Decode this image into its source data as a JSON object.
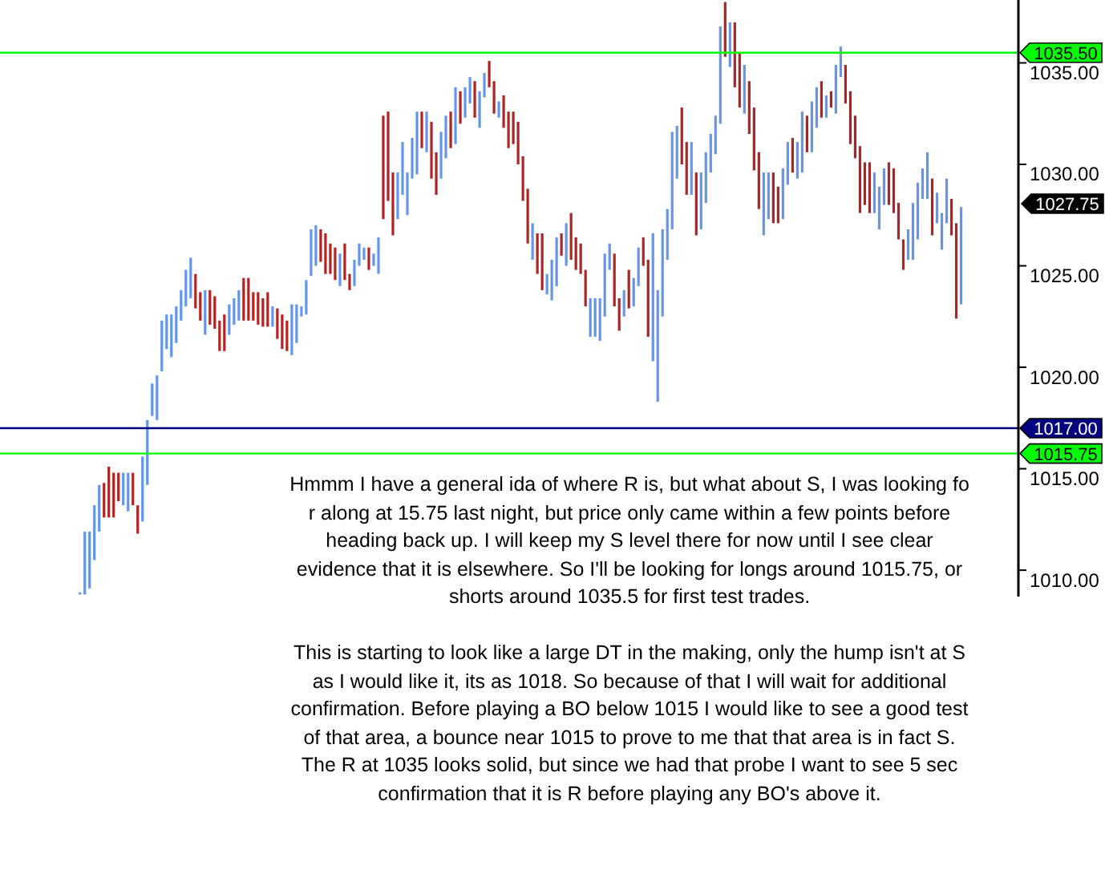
{
  "chart_data": {
    "type": "candlestick",
    "categories": [
      null,
      null,
      null,
      null,
      null,
      null,
      null,
      null,
      null,
      null,
      null,
      null,
      null,
      null,
      null,
      null,
      null,
      null,
      null,
      null,
      null,
      null,
      null,
      null,
      null,
      null,
      null,
      null,
      null,
      null,
      null,
      null,
      null,
      null,
      null,
      null,
      null,
      null,
      null,
      null,
      null,
      null,
      null,
      null,
      null,
      null,
      null,
      null,
      null,
      null,
      null,
      null,
      null,
      null,
      null,
      null,
      null,
      null,
      null,
      null,
      null,
      null,
      null,
      null,
      null,
      null,
      null,
      null,
      null,
      null,
      null,
      null,
      null,
      null,
      null,
      null,
      null,
      null,
      null,
      null,
      null,
      null,
      null,
      null,
      null,
      null,
      null,
      null,
      null,
      null,
      null,
      null,
      null,
      null,
      null,
      null,
      null,
      null,
      null,
      null,
      null,
      null,
      null,
      null,
      null,
      null,
      null,
      null,
      null,
      null,
      null,
      null,
      null,
      null,
      null,
      null,
      null,
      null,
      null,
      null,
      null,
      null,
      null,
      null,
      null,
      null,
      null,
      null,
      null,
      null,
      null,
      null,
      null,
      null,
      null,
      null,
      null,
      null,
      null,
      null,
      null,
      null,
      null,
      null,
      null,
      null,
      null,
      null,
      null,
      null,
      null,
      null,
      null,
      null,
      null,
      null,
      null,
      null,
      null,
      null,
      null,
      null,
      null,
      null,
      null,
      null,
      null,
      null,
      null,
      null,
      null,
      null,
      null,
      null,
      null,
      null,
      null,
      null,
      null,
      null,
      null,
      null,
      null,
      null
    ],
    "ohlc": [
      [
        1008.8,
        1008.9,
        1008.8,
        1008.9
      ],
      [
        1008.8,
        1011.9,
        1008.8,
        1011.9
      ],
      [
        1009.1,
        1011.9,
        1009.1,
        1011.9
      ],
      [
        1010.5,
        1013.2,
        1010.5,
        1013.2
      ],
      [
        1011.9,
        1014.2,
        1011.9,
        1014.2
      ],
      [
        1014.3,
        1014.3,
        1012.6,
        1012.6
      ],
      [
        1015.1,
        1015.1,
        1012.6,
        1012.6
      ],
      [
        1014.8,
        1014.8,
        1012.6,
        1012.6
      ],
      [
        1014.8,
        1014.8,
        1013.4,
        1013.4
      ],
      [
        1013.2,
        1014.8,
        1013.2,
        1014.8
      ],
      [
        1012.9,
        1014.8,
        1012.9,
        1014.8
      ],
      [
        1014.8,
        1014.8,
        1013.2,
        1013.2
      ],
      [
        1013.2,
        1013.2,
        1011.8,
        1011.8
      ],
      [
        1012.4,
        1015.6,
        1012.4,
        1015.6
      ],
      [
        1014.2,
        1017.4,
        1014.2,
        1017.4
      ],
      [
        1017.6,
        1019.2,
        1017.6,
        1019.2
      ],
      [
        1017.4,
        1019.6,
        1017.4,
        1019.6
      ],
      [
        1019.8,
        1022.3,
        1019.8,
        1022.3
      ],
      [
        1020.9,
        1022.6,
        1020.9,
        1022.6
      ],
      [
        1020.5,
        1022.6,
        1020.5,
        1022.6
      ],
      [
        1021.2,
        1023.0,
        1021.2,
        1023.0
      ],
      [
        1022.3,
        1023.8,
        1022.3,
        1023.8
      ],
      [
        1023.0,
        1024.8,
        1023.0,
        1024.8
      ],
      [
        1023.4,
        1025.4,
        1023.4,
        1025.4
      ],
      [
        1024.6,
        1024.6,
        1022.9,
        1022.9
      ],
      [
        1023.7,
        1023.7,
        1022.3,
        1022.3
      ],
      [
        1021.6,
        1023.8,
        1021.6,
        1023.8
      ],
      [
        1023.8,
        1023.8,
        1022.1,
        1022.1
      ],
      [
        1023.5,
        1023.5,
        1021.9,
        1021.9
      ],
      [
        1022.3,
        1022.3,
        1020.8,
        1020.8
      ],
      [
        1022.6,
        1022.6,
        1020.8,
        1020.8
      ],
      [
        1021.6,
        1023.1,
        1021.6,
        1023.1
      ],
      [
        1022.1,
        1023.4,
        1022.1,
        1023.4
      ],
      [
        1022.3,
        1023.8,
        1022.3,
        1023.8
      ],
      [
        1024.4,
        1024.4,
        1022.3,
        1022.3
      ],
      [
        1024.4,
        1024.4,
        1022.3,
        1022.3
      ],
      [
        1023.7,
        1023.7,
        1022.3,
        1022.3
      ],
      [
        1023.7,
        1023.7,
        1022.1,
        1022.1
      ],
      [
        1023.4,
        1023.4,
        1022.0,
        1022.0
      ],
      [
        1023.7,
        1023.7,
        1022.0,
        1022.0
      ],
      [
        1022.0,
        1023.0,
        1022.0,
        1023.0
      ],
      [
        1022.9,
        1022.9,
        1021.4,
        1021.4
      ],
      [
        1022.6,
        1022.6,
        1020.9,
        1020.9
      ],
      [
        1022.3,
        1022.3,
        1020.8,
        1020.8
      ],
      [
        1020.6,
        1023.1,
        1020.6,
        1023.1
      ],
      [
        1021.2,
        1023.1,
        1021.2,
        1023.1
      ],
      [
        1022.5,
        1023.0,
        1022.5,
        1023.0
      ],
      [
        1022.6,
        1024.3,
        1022.6,
        1024.3
      ],
      [
        1024.5,
        1026.8,
        1024.5,
        1026.8
      ],
      [
        1025.0,
        1027.0,
        1025.0,
        1027.0
      ],
      [
        1026.8,
        1026.8,
        1025.2,
        1025.2
      ],
      [
        1026.6,
        1026.6,
        1024.6,
        1024.6
      ],
      [
        1026.1,
        1026.1,
        1024.6,
        1024.6
      ],
      [
        1025.9,
        1025.9,
        1024.3,
        1024.3
      ],
      [
        1024.0,
        1025.6,
        1024.0,
        1025.6
      ],
      [
        1026.1,
        1026.1,
        1024.3,
        1024.3
      ],
      [
        1024.6,
        1024.6,
        1023.8,
        1023.8
      ],
      [
        1024.0,
        1025.3,
        1024.0,
        1025.3
      ],
      [
        1025.0,
        1026.1,
        1025.0,
        1026.1
      ],
      [
        1025.3,
        1025.9,
        1025.3,
        1025.9
      ],
      [
        1025.9,
        1025.9,
        1024.8,
        1024.8
      ],
      [
        1025.0,
        1025.6,
        1025.0,
        1025.6
      ],
      [
        1024.6,
        1026.4,
        1024.6,
        1026.4
      ],
      [
        1032.4,
        1032.4,
        1027.3,
        1027.3
      ],
      [
        1032.6,
        1032.6,
        1028.2,
        1028.2
      ],
      [
        1029.6,
        1029.6,
        1026.5,
        1026.5
      ],
      [
        1027.3,
        1029.6,
        1027.3,
        1029.6
      ],
      [
        1028.5,
        1031.1,
        1028.5,
        1031.1
      ],
      [
        1027.5,
        1029.6,
        1027.5,
        1029.6
      ],
      [
        1029.3,
        1031.3,
        1029.3,
        1031.3
      ],
      [
        1029.5,
        1032.6,
        1029.5,
        1032.6
      ],
      [
        1032.6,
        1032.6,
        1030.8,
        1030.8
      ],
      [
        1030.6,
        1032.6,
        1030.6,
        1032.6
      ],
      [
        1032.1,
        1032.1,
        1029.3,
        1029.3
      ],
      [
        1030.6,
        1030.6,
        1028.5,
        1028.5
      ],
      [
        1029.3,
        1031.6,
        1029.3,
        1031.6
      ],
      [
        1030.3,
        1032.4,
        1030.3,
        1032.4
      ],
      [
        1032.6,
        1032.6,
        1030.8,
        1030.8
      ],
      [
        1031.0,
        1033.8,
        1031.0,
        1033.8
      ],
      [
        1033.6,
        1033.6,
        1032.0,
        1032.0
      ],
      [
        1032.3,
        1033.8,
        1032.3,
        1033.8
      ],
      [
        1033.0,
        1034.3,
        1033.0,
        1034.3
      ],
      [
        1034.1,
        1034.1,
        1032.3,
        1032.3
      ],
      [
        1031.8,
        1033.6,
        1031.8,
        1033.6
      ],
      [
        1033.3,
        1034.5,
        1033.3,
        1034.5
      ],
      [
        1035.1,
        1035.1,
        1033.8,
        1033.8
      ],
      [
        1034.1,
        1034.1,
        1032.5,
        1032.5
      ],
      [
        1032.3,
        1033.1,
        1032.3,
        1033.1
      ],
      [
        1033.4,
        1033.4,
        1031.8,
        1031.8
      ],
      [
        1032.6,
        1032.6,
        1030.8,
        1030.8
      ],
      [
        1032.6,
        1032.6,
        1031.0,
        1031.0
      ],
      [
        1032.1,
        1032.1,
        1030.0,
        1030.0
      ],
      [
        1030.4,
        1030.4,
        1028.2,
        1028.2
      ],
      [
        1028.8,
        1028.8,
        1026.1,
        1026.1
      ],
      [
        1025.3,
        1027.1,
        1025.3,
        1027.1
      ],
      [
        1026.6,
        1026.6,
        1024.6,
        1024.6
      ],
      [
        1026.6,
        1026.6,
        1023.8,
        1023.8
      ],
      [
        1023.6,
        1024.6,
        1023.6,
        1024.6
      ],
      [
        1023.3,
        1025.3,
        1023.3,
        1025.3
      ],
      [
        1024.0,
        1026.4,
        1024.0,
        1026.4
      ],
      [
        1026.6,
        1026.6,
        1025.5,
        1025.5
      ],
      [
        1025.0,
        1027.1,
        1025.0,
        1027.1
      ],
      [
        1027.6,
        1027.6,
        1025.3,
        1025.3
      ],
      [
        1026.4,
        1026.4,
        1024.8,
        1024.8
      ],
      [
        1026.1,
        1026.1,
        1024.6,
        1024.6
      ],
      [
        1024.8,
        1024.8,
        1023.0,
        1023.0
      ],
      [
        1021.5,
        1023.4,
        1021.5,
        1023.4
      ],
      [
        1021.5,
        1023.4,
        1021.5,
        1023.4
      ],
      [
        1021.3,
        1023.4,
        1021.3,
        1023.4
      ],
      [
        1022.5,
        1025.6,
        1022.5,
        1025.6
      ],
      [
        1024.8,
        1026.1,
        1024.8,
        1026.1
      ],
      [
        1025.6,
        1025.6,
        1023.0,
        1023.0
      ],
      [
        1023.4,
        1023.4,
        1021.8,
        1021.8
      ],
      [
        1022.5,
        1023.8,
        1022.5,
        1023.8
      ],
      [
        1024.8,
        1024.8,
        1022.9,
        1022.9
      ],
      [
        1023.0,
        1024.4,
        1023.0,
        1024.4
      ],
      [
        1024.0,
        1025.9,
        1024.0,
        1025.9
      ],
      [
        1026.4,
        1026.4,
        1025.0,
        1025.0
      ],
      [
        1025.3,
        1025.3,
        1021.5,
        1021.5
      ],
      [
        1020.3,
        1026.6,
        1020.3,
        1026.6
      ],
      [
        1018.3,
        1023.8,
        1018.3,
        1023.8
      ],
      [
        1022.5,
        1026.8,
        1022.5,
        1026.8
      ],
      [
        1025.3,
        1027.8,
        1025.3,
        1027.8
      ],
      [
        1026.8,
        1031.6,
        1026.8,
        1031.6
      ],
      [
        1029.3,
        1031.9,
        1029.3,
        1031.9
      ],
      [
        1032.8,
        1032.8,
        1030.0,
        1030.0
      ],
      [
        1031.1,
        1031.1,
        1028.5,
        1028.5
      ],
      [
        1028.5,
        1031.1,
        1028.5,
        1031.1
      ],
      [
        1029.6,
        1029.6,
        1026.5,
        1026.5
      ],
      [
        1026.8,
        1029.6,
        1026.8,
        1029.6
      ],
      [
        1028.1,
        1030.6,
        1028.1,
        1030.6
      ],
      [
        1029.6,
        1031.5,
        1029.6,
        1031.5
      ],
      [
        1030.5,
        1032.4,
        1030.5,
        1032.4
      ],
      [
        1032.0,
        1036.8,
        1032.0,
        1036.8
      ],
      [
        1038.0,
        1038.0,
        1035.3,
        1035.3
      ],
      [
        1034.8,
        1037.0,
        1034.8,
        1037.0
      ],
      [
        1037.0,
        1037.0,
        1033.8,
        1033.8
      ],
      [
        1035.5,
        1035.5,
        1032.8,
        1032.8
      ],
      [
        1032.5,
        1034.9,
        1032.5,
        1034.9
      ],
      [
        1034.1,
        1034.1,
        1031.5,
        1031.5
      ],
      [
        1032.8,
        1032.8,
        1029.7,
        1029.7
      ],
      [
        1030.6,
        1030.6,
        1027.8,
        1027.8
      ],
      [
        1026.5,
        1029.6,
        1026.5,
        1029.6
      ],
      [
        1027.3,
        1029.6,
        1027.3,
        1029.6
      ],
      [
        1029.6,
        1029.6,
        1027.1,
        1027.1
      ],
      [
        1028.9,
        1028.9,
        1027.1,
        1027.1
      ],
      [
        1027.3,
        1029.8,
        1027.3,
        1029.8
      ],
      [
        1029.0,
        1031.1,
        1029.0,
        1031.1
      ],
      [
        1031.3,
        1031.3,
        1029.6,
        1029.6
      ],
      [
        1029.3,
        1031.1,
        1029.3,
        1031.1
      ],
      [
        1029.6,
        1032.6,
        1029.6,
        1032.6
      ],
      [
        1032.4,
        1032.4,
        1030.6,
        1030.6
      ],
      [
        1030.6,
        1033.1,
        1030.6,
        1033.1
      ],
      [
        1031.8,
        1033.8,
        1031.8,
        1033.8
      ],
      [
        1034.1,
        1034.1,
        1032.3,
        1032.3
      ],
      [
        1032.3,
        1033.4,
        1032.3,
        1033.4
      ],
      [
        1033.6,
        1033.6,
        1032.8,
        1032.8
      ],
      [
        1032.5,
        1034.9,
        1032.5,
        1034.9
      ],
      [
        1034.3,
        1035.8,
        1034.3,
        1035.8
      ],
      [
        1034.9,
        1034.9,
        1033.0,
        1033.0
      ],
      [
        1033.6,
        1033.6,
        1031.0,
        1031.0
      ],
      [
        1032.4,
        1032.4,
        1030.3,
        1030.3
      ],
      [
        1030.9,
        1030.9,
        1027.6,
        1027.6
      ],
      [
        1030.1,
        1030.1,
        1028.0,
        1028.0
      ],
      [
        1030.1,
        1030.1,
        1027.6,
        1027.6
      ],
      [
        1027.6,
        1029.6,
        1027.6,
        1029.6
      ],
      [
        1026.8,
        1028.9,
        1026.8,
        1028.9
      ],
      [
        1028.0,
        1029.8,
        1028.0,
        1029.8
      ],
      [
        1030.1,
        1030.1,
        1028.0,
        1028.0
      ],
      [
        1029.8,
        1029.8,
        1027.6,
        1027.6
      ],
      [
        1028.1,
        1028.1,
        1026.3,
        1026.3
      ],
      [
        1026.3,
        1026.3,
        1024.8,
        1024.8
      ],
      [
        1025.3,
        1026.8,
        1025.3,
        1026.8
      ],
      [
        1025.3,
        1028.1,
        1025.3,
        1028.1
      ],
      [
        1026.3,
        1029.1,
        1026.3,
        1029.1
      ],
      [
        1028.3,
        1029.8,
        1028.3,
        1029.8
      ],
      [
        1028.3,
        1030.6,
        1028.3,
        1030.6
      ],
      [
        1029.3,
        1029.3,
        1026.5,
        1026.5
      ],
      [
        1027.1,
        1028.6,
        1027.1,
        1028.6
      ],
      [
        1025.8,
        1027.6,
        1025.8,
        1027.6
      ],
      [
        1027.1,
        1029.3,
        1027.1,
        1029.3
      ],
      [
        1028.3,
        1028.3,
        1026.5,
        1026.5
      ],
      [
        1027.1,
        1027.1,
        1022.4,
        1022.4
      ],
      [
        1023.1,
        1027.9,
        1023.1,
        1027.9
      ]
    ],
    "colors": [
      "#6495ed",
      "#6495ed",
      "#6495ed",
      "#6495ed",
      "#6495ed",
      "#b22222",
      "#b22222",
      "#b22222",
      "#b22222",
      "#6495ed",
      "#6495ed",
      "#b22222",
      "#b22222",
      "#6495ed",
      "#6495ed",
      "#6495ed",
      "#6495ed",
      "#6495ed",
      "#6495ed",
      "#6495ed",
      "#6495ed",
      "#6495ed",
      "#6495ed",
      "#6495ed",
      "#b22222",
      "#b22222",
      "#6495ed",
      "#b22222",
      "#b22222",
      "#b22222",
      "#b22222",
      "#6495ed",
      "#6495ed",
      "#6495ed",
      "#b22222",
      "#b22222",
      "#b22222",
      "#b22222",
      "#b22222",
      "#b22222",
      "#6495ed",
      "#b22222",
      "#b22222",
      "#b22222",
      "#6495ed",
      "#6495ed",
      "#6495ed",
      "#6495ed",
      "#6495ed",
      "#6495ed",
      "#b22222",
      "#b22222",
      "#b22222",
      "#b22222",
      "#6495ed",
      "#b22222",
      "#b22222",
      "#6495ed",
      "#6495ed",
      "#6495ed",
      "#b22222",
      "#6495ed",
      "#6495ed",
      "#b22222",
      "#b22222",
      "#b22222",
      "#6495ed",
      "#6495ed",
      "#6495ed",
      "#6495ed",
      "#6495ed",
      "#b22222",
      "#6495ed",
      "#b22222",
      "#b22222",
      "#6495ed",
      "#6495ed",
      "#b22222",
      "#6495ed",
      "#b22222",
      "#6495ed",
      "#6495ed",
      "#b22222",
      "#6495ed",
      "#6495ed",
      "#b22222",
      "#b22222",
      "#6495ed",
      "#b22222",
      "#b22222",
      "#b22222",
      "#b22222",
      "#b22222",
      "#b22222",
      "#6495ed",
      "#b22222",
      "#b22222",
      "#6495ed",
      "#6495ed",
      "#6495ed",
      "#b22222",
      "#6495ed",
      "#b22222",
      "#b22222",
      "#b22222",
      "#b22222",
      "#6495ed",
      "#6495ed",
      "#6495ed",
      "#6495ed",
      "#6495ed",
      "#b22222",
      "#b22222",
      "#6495ed",
      "#b22222",
      "#6495ed",
      "#6495ed",
      "#b22222",
      "#b22222",
      "#6495ed",
      "#6495ed",
      "#6495ed",
      "#6495ed",
      "#6495ed",
      "#6495ed",
      "#b22222",
      "#b22222",
      "#6495ed",
      "#b22222",
      "#6495ed",
      "#6495ed",
      "#6495ed",
      "#6495ed",
      "#6495ed",
      "#b22222",
      "#6495ed",
      "#b22222",
      "#b22222",
      "#6495ed",
      "#b22222",
      "#b22222",
      "#b22222",
      "#6495ed",
      "#6495ed",
      "#b22222",
      "#b22222",
      "#6495ed",
      "#6495ed",
      "#b22222",
      "#6495ed",
      "#6495ed",
      "#b22222",
      "#6495ed",
      "#6495ed",
      "#b22222",
      "#6495ed",
      "#b22222",
      "#6495ed",
      "#6495ed",
      "#b22222",
      "#b22222",
      "#b22222",
      "#b22222",
      "#b22222",
      "#b22222",
      "#6495ed",
      "#6495ed",
      "#6495ed",
      "#b22222",
      "#b22222",
      "#b22222",
      "#b22222",
      "#6495ed",
      "#6495ed",
      "#6495ed",
      "#6495ed",
      "#6495ed",
      "#b22222",
      "#6495ed",
      "#6495ed",
      "#6495ed",
      "#b22222",
      "#b22222",
      "#6495ed"
    ],
    "ylim": [
      1008.7,
      1038.1
    ],
    "yticks": [
      {
        "value": 1010,
        "label": "1010.00"
      },
      {
        "value": 1015,
        "label": "1015.00"
      },
      {
        "value": 1020,
        "label": "1020.00"
      },
      {
        "value": 1025,
        "label": "1025.00"
      },
      {
        "value": 1030,
        "label": "1030.00"
      },
      {
        "value": 1035,
        "label": "1035.00"
      }
    ],
    "grid": false,
    "tick_labels": "y",
    "ref_lines": [
      {
        "axis": "y",
        "value": 1035.5,
        "label": "1035.50",
        "color": "#00ff00"
      },
      {
        "axis": "y",
        "value": 1017,
        "label": "1017.00",
        "color": "#000080"
      },
      {
        "axis": "y",
        "value": 1015.75,
        "label": "1015.75",
        "color": "#00ff00"
      }
    ],
    "annotations": [
      "1027.75",
      "Hmmm I have a general ida of where R is, but what about S, I was looking fo r along at 15.75 last night, but price only came within a few points before heading back up. I will keep my S level there for now until I see clear evidence that it is elsewhere. So I'll be looking for longs around 1015.75, or shorts around 1035.5 for first test trades.",
      "This is starting to look like a large DT in the making, only the hump isn't at S as I would like it, its as 1018. So because of that I will wait for additional confirmation. Before playing a BO below 1015 I would like to see a good test of that area, a bounce near 1015 to prove to me that that area is in fact S. The R at 1035 looks solid, but since we had that probe I want to see 5 sec confirmation that it is R before playing any BO's above it."
    ]
  }
}
